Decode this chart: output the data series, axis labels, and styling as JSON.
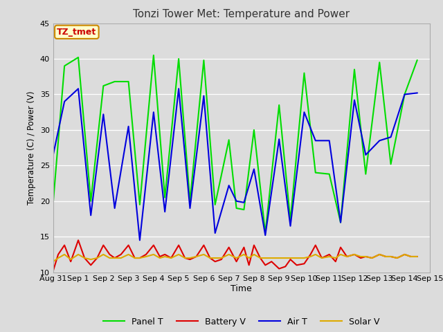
{
  "title": "Tonzi Tower Met: Temperature and Power",
  "xlabel": "Time",
  "ylabel": "Temperature (C) / Power (V)",
  "annotation_text": "TZ_tmet",
  "annotation_color": "#cc0000",
  "annotation_bg": "#ffffcc",
  "annotation_border": "#cc8800",
  "ylim": [
    10,
    45
  ],
  "yticks": [
    10,
    15,
    20,
    25,
    30,
    35,
    40,
    45
  ],
  "plot_bg": "#dcdcdc",
  "fig_bg": "#dcdcdc",
  "legend_entries": [
    "Panel T",
    "Battery V",
    "Air T",
    "Solar V"
  ],
  "legend_colors": [
    "#00dd00",
    "#dd0000",
    "#0000dd",
    "#ddaa00"
  ],
  "x_tick_labels": [
    "Aug 31",
    "Sep 1",
    "Sep 2",
    "Sep 3",
    "Sep 4",
    "Sep 5",
    "Sep 6",
    "Sep 7",
    "Sep 8",
    "Sep 9",
    "Sep 10",
    "Sep 11",
    "Sep 12",
    "Sep 13",
    "Sep 14",
    "Sep 15"
  ],
  "panel_t_x": [
    0.0,
    0.45,
    1.0,
    1.5,
    2.0,
    2.45,
    3.0,
    3.45,
    4.0,
    4.45,
    5.0,
    5.45,
    6.0,
    6.45,
    7.0,
    7.3,
    7.6,
    8.0,
    8.45,
    9.0,
    9.45,
    10.0,
    10.45,
    11.0,
    11.45,
    12.0,
    12.45,
    13.0,
    13.45,
    14.0,
    14.5
  ],
  "panel_t_y": [
    19.8,
    39.0,
    40.2,
    20.0,
    36.2,
    36.8,
    36.8,
    19.5,
    40.5,
    20.5,
    40.0,
    20.0,
    39.8,
    19.5,
    28.6,
    19.0,
    18.8,
    30.0,
    15.5,
    33.5,
    17.3,
    38.0,
    24.0,
    23.8,
    17.0,
    38.5,
    23.8,
    39.5,
    25.2,
    35.0,
    39.8
  ],
  "air_t_x": [
    0.0,
    0.45,
    1.0,
    1.5,
    2.0,
    2.45,
    3.0,
    3.45,
    4.0,
    4.45,
    5.0,
    5.45,
    6.0,
    6.45,
    7.0,
    7.3,
    7.6,
    8.0,
    8.45,
    9.0,
    9.45,
    10.0,
    10.45,
    11.0,
    11.45,
    12.0,
    12.45,
    13.0,
    13.45,
    14.0,
    14.5
  ],
  "air_t_y": [
    26.5,
    34.0,
    35.8,
    18.0,
    32.2,
    19.0,
    30.5,
    14.5,
    32.5,
    18.5,
    35.8,
    19.0,
    34.8,
    15.5,
    22.2,
    20.0,
    19.8,
    24.5,
    15.2,
    28.7,
    16.5,
    32.5,
    28.5,
    28.5,
    17.0,
    34.2,
    26.5,
    28.5,
    29.0,
    35.0,
    35.2
  ],
  "battery_v_x": [
    0.0,
    0.2,
    0.45,
    0.7,
    1.0,
    1.25,
    1.5,
    1.75,
    2.0,
    2.25,
    2.45,
    2.7,
    3.0,
    3.25,
    3.45,
    3.7,
    4.0,
    4.25,
    4.45,
    4.7,
    5.0,
    5.25,
    5.45,
    5.7,
    6.0,
    6.25,
    6.45,
    6.7,
    7.0,
    7.3,
    7.6,
    7.8,
    8.0,
    8.25,
    8.45,
    8.7,
    9.0,
    9.25,
    9.45,
    9.7,
    10.0,
    10.25,
    10.45,
    10.7,
    11.0,
    11.25,
    11.45,
    11.7,
    12.0,
    12.25,
    12.45,
    12.7,
    13.0,
    13.25,
    13.45,
    13.7,
    14.0,
    14.25,
    14.5
  ],
  "battery_v_y": [
    10.2,
    12.5,
    13.8,
    11.5,
    14.5,
    12.0,
    11.0,
    12.0,
    13.8,
    12.5,
    12.0,
    12.5,
    13.8,
    12.0,
    12.0,
    12.5,
    13.8,
    12.2,
    12.5,
    12.0,
    13.8,
    12.0,
    11.8,
    12.2,
    13.8,
    12.0,
    11.5,
    11.8,
    13.5,
    11.5,
    13.5,
    11.0,
    13.8,
    12.0,
    11.0,
    11.5,
    10.5,
    10.8,
    11.8,
    11.0,
    11.2,
    12.5,
    13.8,
    12.0,
    12.5,
    11.5,
    13.5,
    12.2,
    12.5,
    12.0,
    12.2,
    12.0,
    12.5,
    12.2,
    12.2,
    12.0,
    12.5,
    12.2,
    12.2
  ],
  "solar_v_x": [
    0.0,
    0.2,
    0.45,
    0.7,
    1.0,
    1.25,
    1.5,
    1.75,
    2.0,
    2.25,
    2.45,
    2.7,
    3.0,
    3.25,
    3.45,
    3.7,
    4.0,
    4.25,
    4.45,
    4.7,
    5.0,
    5.25,
    5.45,
    5.7,
    6.0,
    6.25,
    6.45,
    6.7,
    7.0,
    7.3,
    7.6,
    7.8,
    8.0,
    8.25,
    8.45,
    8.7,
    9.0,
    9.25,
    9.45,
    9.7,
    10.0,
    10.25,
    10.45,
    10.7,
    11.0,
    11.25,
    11.45,
    11.7,
    12.0,
    12.25,
    12.45,
    12.7,
    13.0,
    13.25,
    13.45,
    13.7,
    14.0,
    14.25,
    14.5
  ],
  "solar_v_y": [
    11.5,
    12.0,
    12.5,
    11.8,
    12.5,
    12.0,
    11.8,
    12.0,
    12.5,
    12.0,
    12.0,
    12.0,
    12.5,
    12.0,
    12.0,
    12.2,
    12.5,
    12.0,
    12.2,
    12.0,
    12.5,
    12.0,
    12.0,
    12.2,
    12.5,
    12.0,
    12.0,
    12.0,
    12.5,
    12.0,
    12.5,
    12.0,
    12.5,
    12.0,
    12.0,
    12.0,
    12.0,
    12.0,
    12.0,
    12.0,
    12.0,
    12.2,
    12.5,
    12.0,
    12.2,
    12.0,
    12.5,
    12.2,
    12.5,
    12.2,
    12.2,
    12.0,
    12.5,
    12.2,
    12.2,
    12.0,
    12.5,
    12.2,
    12.2
  ]
}
